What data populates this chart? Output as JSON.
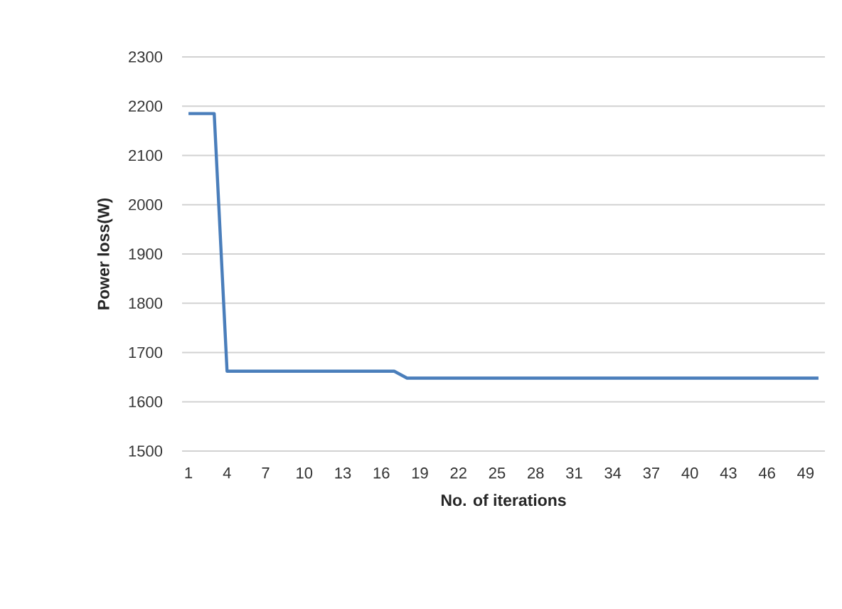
{
  "chart_data": {
    "type": "line",
    "xlabel": "No. of iterations",
    "ylabel": "Power loss(W)",
    "x": [
      1,
      2,
      3,
      4,
      5,
      6,
      7,
      8,
      9,
      10,
      11,
      12,
      13,
      14,
      15,
      16,
      17,
      18,
      19,
      20,
      21,
      22,
      23,
      24,
      25,
      26,
      27,
      28,
      29,
      30,
      31,
      32,
      33,
      34,
      35,
      36,
      37,
      38,
      39,
      40,
      41,
      42,
      43,
      44,
      45,
      46,
      47,
      48,
      49,
      50
    ],
    "series": [
      {
        "color": "#4a7ebb",
        "values": [
          2185,
          2185,
          2185,
          1662,
          1662,
          1662,
          1662,
          1662,
          1662,
          1662,
          1662,
          1662,
          1662,
          1662,
          1662,
          1662,
          1662,
          1648,
          1648,
          1648,
          1648,
          1648,
          1648,
          1648,
          1648,
          1648,
          1648,
          1648,
          1648,
          1648,
          1648,
          1648,
          1648,
          1648,
          1648,
          1648,
          1648,
          1648,
          1648,
          1648,
          1648,
          1648,
          1648,
          1648,
          1648,
          1648,
          1648,
          1648,
          1648,
          1648
        ]
      }
    ],
    "xlim": [
      0.5,
      50.5
    ],
    "xticks": [
      1,
      4,
      7,
      10,
      13,
      16,
      19,
      22,
      25,
      28,
      31,
      34,
      37,
      40,
      43,
      46,
      49
    ],
    "ylim": [
      1500,
      2300
    ],
    "yticks": [
      1500,
      1600,
      1700,
      1800,
      1900,
      2000,
      2100,
      2200,
      2300
    ],
    "grid": "y",
    "line_style": "solid",
    "marker": "none",
    "legend": false
  }
}
